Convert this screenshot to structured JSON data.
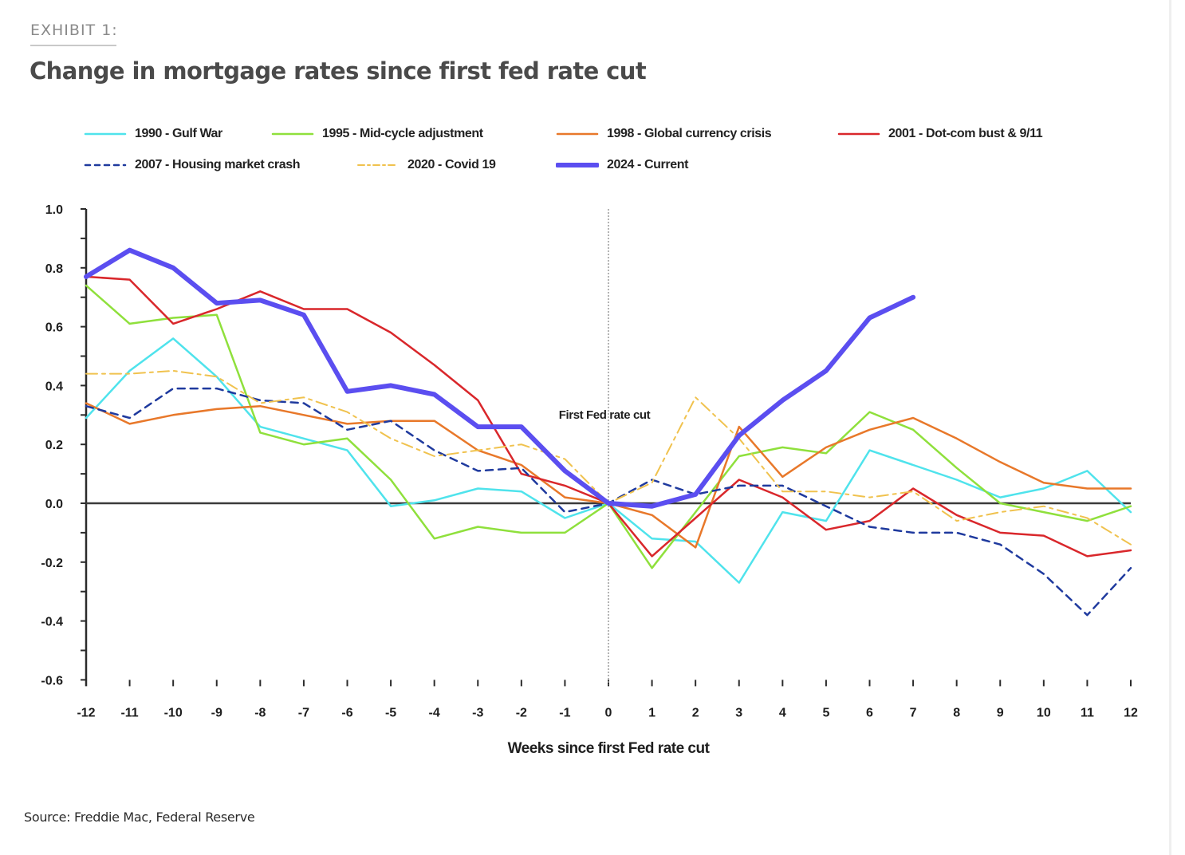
{
  "header": {
    "exhibit_label": "EXHIBIT 1:",
    "title": "Change in mortgage rates since first fed rate cut"
  },
  "footer": {
    "source": "Source: Freddie Mac, Federal Reserve"
  },
  "chart_data": {
    "type": "line",
    "title": "Change in mortgage rates since first fed rate cut",
    "xlabel": "Weeks since first Fed rate cut",
    "ylabel": "",
    "x": [
      -12,
      -11,
      -10,
      -9,
      -8,
      -7,
      -6,
      -5,
      -4,
      -3,
      -2,
      -1,
      0,
      1,
      2,
      3,
      4,
      5,
      6,
      7,
      8,
      9,
      10,
      11,
      12
    ],
    "x_tick_labels": [
      "-12",
      "-11",
      "-10",
      "-9",
      "-8",
      "-7",
      "-6",
      "-5",
      "-4",
      "-3",
      "-2",
      "-1",
      "0",
      "1",
      "2",
      "3",
      "4",
      "5",
      "6",
      "7",
      "8",
      "9",
      "10",
      "11",
      "12"
    ],
    "ylim": [
      -0.6,
      1.0
    ],
    "y_ticks": [
      1.0,
      0.8,
      0.6,
      0.4,
      0.2,
      0.0,
      -0.2,
      -0.4,
      -0.6
    ],
    "y_tick_labels": [
      "1.0",
      "0.8",
      "0.6",
      "0.4",
      "0.2",
      "0.0",
      "-0.2",
      "-0.4",
      "-0.6"
    ],
    "grid": false,
    "legend_position": "top",
    "annotations": [
      {
        "text": "First Fed rate cut",
        "x": 0,
        "type": "vertical-dotted-line"
      }
    ],
    "series": [
      {
        "name": "1990 - Gulf War",
        "color": "#4fe3ec",
        "style": "solid",
        "values": [
          0.29,
          0.45,
          0.56,
          0.43,
          0.26,
          0.22,
          0.18,
          -0.01,
          0.01,
          0.05,
          0.04,
          -0.05,
          0.0,
          -0.12,
          -0.13,
          -0.27,
          -0.03,
          -0.06,
          0.18,
          0.13,
          0.08,
          0.02,
          0.05,
          0.11,
          -0.03
        ]
      },
      {
        "name": "1995 - Mid-cycle adjustment",
        "color": "#8fe03c",
        "style": "solid",
        "values": [
          0.74,
          0.61,
          0.63,
          0.64,
          0.24,
          0.2,
          0.22,
          0.08,
          -0.12,
          -0.08,
          -0.1,
          -0.1,
          0.0,
          -0.22,
          -0.03,
          0.16,
          0.19,
          0.17,
          0.31,
          0.25,
          0.12,
          0.0,
          -0.03,
          -0.06,
          -0.01
        ]
      },
      {
        "name": "1998 - Global currency crisis",
        "color": "#e8782a",
        "style": "solid",
        "values": [
          0.34,
          0.27,
          0.3,
          0.32,
          0.33,
          0.3,
          0.27,
          0.28,
          0.28,
          0.18,
          0.13,
          0.02,
          0.0,
          -0.04,
          -0.15,
          0.26,
          0.09,
          0.19,
          0.25,
          0.29,
          0.22,
          0.14,
          0.07,
          0.05,
          0.05
        ]
      },
      {
        "name": "2001 - Dot-com bust & 9/11",
        "color": "#d9272b",
        "style": "solid",
        "values": [
          0.77,
          0.76,
          0.61,
          0.66,
          0.72,
          0.66,
          0.66,
          0.58,
          0.47,
          0.35,
          0.1,
          0.06,
          0.0,
          -0.18,
          -0.05,
          0.08,
          0.02,
          -0.09,
          -0.06,
          0.05,
          -0.04,
          -0.1,
          -0.11,
          -0.18,
          -0.16
        ]
      },
      {
        "name": "2007 - Housing market crash",
        "color": "#1f3a9e",
        "style": "dashed",
        "values": [
          0.33,
          0.29,
          0.39,
          0.39,
          0.35,
          0.34,
          0.25,
          0.28,
          0.18,
          0.11,
          0.12,
          -0.03,
          0.0,
          0.08,
          0.03,
          0.06,
          0.06,
          -0.01,
          -0.08,
          -0.1,
          -0.1,
          -0.14,
          -0.24,
          -0.38,
          -0.22
        ]
      },
      {
        "name": "2020 - Covid 19",
        "color": "#f0c24e",
        "style": "dashdot",
        "values": [
          0.44,
          0.44,
          0.45,
          0.43,
          0.34,
          0.36,
          0.31,
          0.22,
          0.16,
          0.18,
          0.2,
          0.15,
          0.0,
          0.07,
          0.36,
          0.22,
          0.04,
          0.04,
          0.02,
          0.04,
          -0.06,
          -0.03,
          -0.01,
          -0.05,
          -0.14
        ]
      },
      {
        "name": "2024 - Current",
        "color": "#5b4ef0",
        "style": "thick",
        "values": [
          0.77,
          0.86,
          0.8,
          0.68,
          0.69,
          0.64,
          0.38,
          0.4,
          0.37,
          0.26,
          0.26,
          0.11,
          0.0,
          -0.01,
          0.03,
          0.23,
          0.35,
          0.45,
          0.63,
          0.7,
          null,
          null,
          null,
          null,
          null
        ]
      }
    ]
  }
}
